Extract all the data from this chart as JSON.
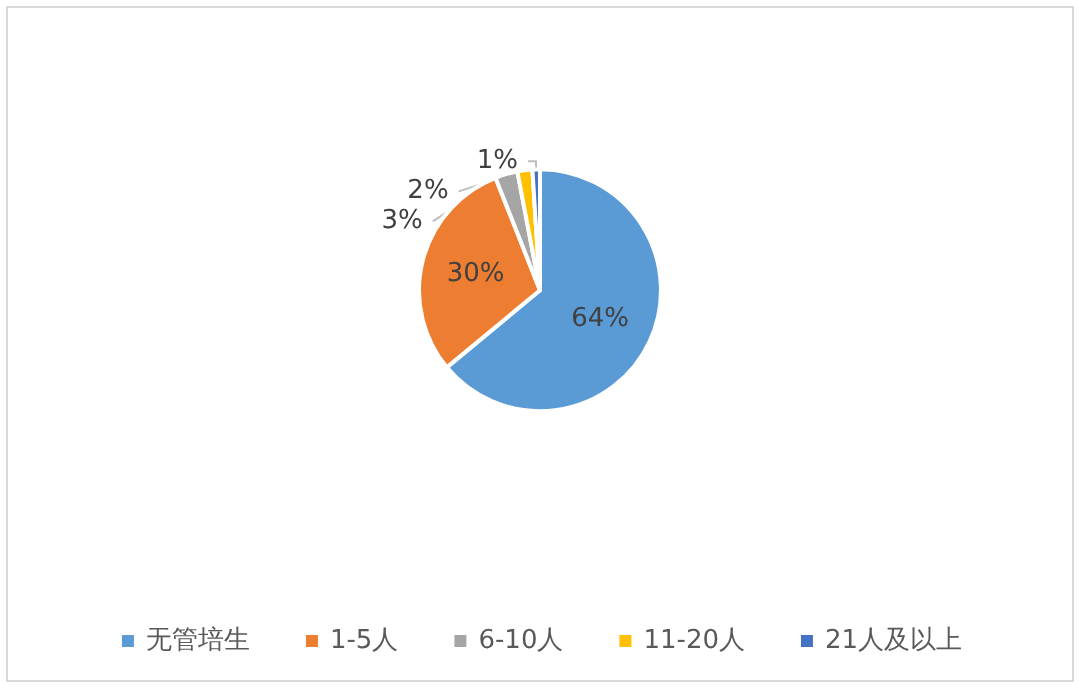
{
  "chart_data": {
    "type": "pie",
    "categories": [
      "无管培生",
      "1-5人",
      "6-10人",
      "11-20人",
      "21人及以上"
    ],
    "values": [
      64,
      30,
      3,
      2,
      1
    ],
    "colors": [
      "#5b9bd5",
      "#ed7d31",
      "#a5a5a5",
      "#ffc000",
      "#4472c4"
    ],
    "value_labels": [
      "64%",
      "30%",
      "3%",
      "2%",
      "1%"
    ],
    "legend": "bottom"
  }
}
